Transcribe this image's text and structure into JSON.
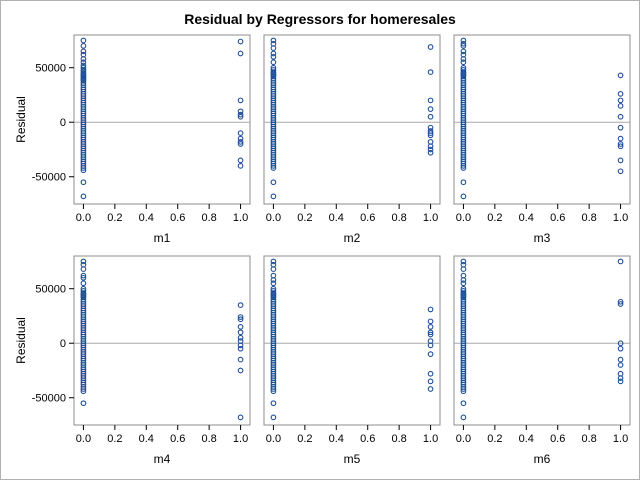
{
  "chart_data": {
    "type": "scatter",
    "title": "Residual by Regressors for homeresales",
    "ylabel": "Residual",
    "ylim": [
      -75000,
      80000
    ],
    "xlim": [
      -0.06,
      1.06
    ],
    "y_ticks": [
      {
        "value": 50000,
        "label": "50000"
      },
      {
        "value": 0,
        "label": "0"
      },
      {
        "value": -50000,
        "label": "-50000"
      }
    ],
    "x_ticks": [
      {
        "value": 0.0,
        "label": "0.0"
      },
      {
        "value": 0.2,
        "label": "0.2"
      },
      {
        "value": 0.4,
        "label": "0.4"
      },
      {
        "value": 0.6,
        "label": "0.6"
      },
      {
        "value": 0.8,
        "label": "0.8"
      },
      {
        "value": 1.0,
        "label": "1.0"
      }
    ],
    "reference_line_y": 0,
    "colors": {
      "marker": "#1f4f9a",
      "reference": "#a8a8a8",
      "frame": "#8c8c8c"
    },
    "panels": [
      {
        "xlabel": "m1",
        "points_x0": [
          75000,
          70000,
          65000,
          62000,
          58000,
          55000,
          52000,
          50000,
          48000,
          47000,
          45000,
          44000,
          43000,
          42000,
          41000,
          40000,
          39000,
          38000,
          36000,
          34000,
          32000,
          30000,
          28000,
          26000,
          24000,
          22000,
          20000,
          18000,
          16000,
          14000,
          12000,
          10000,
          8000,
          6000,
          4000,
          2000,
          0,
          -2000,
          -4000,
          -6000,
          -8000,
          -10000,
          -12000,
          -14000,
          -16000,
          -18000,
          -20000,
          -22000,
          -24000,
          -26000,
          -28000,
          -30000,
          -32000,
          -34000,
          -36000,
          -38000,
          -40000,
          -42000,
          -44000,
          -55000,
          -68000
        ],
        "points_x1": [
          74000,
          63000,
          20000,
          10000,
          7000,
          5000,
          -10000,
          -15000,
          -18000,
          -20000,
          -35000,
          -40000
        ]
      },
      {
        "xlabel": "m2",
        "points_x0": [
          75000,
          72000,
          68000,
          63000,
          60000,
          55000,
          50000,
          48000,
          46000,
          45000,
          44000,
          43000,
          42000,
          40000,
          38000,
          36000,
          34000,
          32000,
          30000,
          28000,
          26000,
          24000,
          22000,
          20000,
          18000,
          16000,
          14000,
          12000,
          10000,
          8000,
          6000,
          4000,
          2000,
          0,
          -2000,
          -4000,
          -6000,
          -8000,
          -10000,
          -12000,
          -14000,
          -16000,
          -18000,
          -20000,
          -22000,
          -24000,
          -26000,
          -28000,
          -30000,
          -32000,
          -34000,
          -36000,
          -38000,
          -40000,
          -42000,
          -55000,
          -68000
        ],
        "points_x1": [
          69000,
          46000,
          20000,
          12000,
          5000,
          -5000,
          -8000,
          -10000,
          -12000,
          -18000,
          -22000,
          -25000,
          -28000
        ]
      },
      {
        "xlabel": "m3",
        "points_x0": [
          75000,
          72000,
          70000,
          65000,
          62000,
          58000,
          55000,
          50000,
          48000,
          46000,
          45000,
          44000,
          43000,
          42000,
          40000,
          38000,
          36000,
          34000,
          32000,
          30000,
          28000,
          26000,
          24000,
          22000,
          20000,
          18000,
          16000,
          14000,
          12000,
          10000,
          8000,
          6000,
          4000,
          2000,
          0,
          -2000,
          -4000,
          -6000,
          -8000,
          -10000,
          -12000,
          -14000,
          -16000,
          -18000,
          -20000,
          -22000,
          -24000,
          -26000,
          -28000,
          -30000,
          -32000,
          -34000,
          -36000,
          -38000,
          -40000,
          -42000,
          -55000,
          -68000
        ],
        "points_x1": [
          43000,
          26000,
          20000,
          15000,
          5000,
          -5000,
          -15000,
          -20000,
          -22000,
          -35000,
          -45000
        ]
      },
      {
        "xlabel": "m4",
        "points_x0": [
          75000,
          72000,
          68000,
          62000,
          60000,
          55000,
          50000,
          48000,
          46000,
          45000,
          44000,
          43000,
          42000,
          40000,
          38000,
          36000,
          34000,
          32000,
          30000,
          28000,
          26000,
          24000,
          22000,
          20000,
          18000,
          16000,
          14000,
          12000,
          10000,
          8000,
          6000,
          4000,
          2000,
          0,
          -2000,
          -4000,
          -6000,
          -8000,
          -10000,
          -12000,
          -14000,
          -16000,
          -18000,
          -20000,
          -22000,
          -24000,
          -26000,
          -28000,
          -30000,
          -32000,
          -34000,
          -36000,
          -38000,
          -40000,
          -42000,
          -44000,
          -55000
        ],
        "points_x1": [
          35000,
          24000,
          22000,
          15000,
          10000,
          5000,
          2000,
          -2000,
          -5000,
          -15000,
          -25000,
          -68000
        ]
      },
      {
        "xlabel": "m5",
        "points_x0": [
          75000,
          72000,
          68000,
          62000,
          58000,
          55000,
          50000,
          48000,
          46000,
          45000,
          44000,
          43000,
          42000,
          40000,
          38000,
          36000,
          34000,
          32000,
          30000,
          28000,
          26000,
          24000,
          22000,
          20000,
          18000,
          16000,
          14000,
          12000,
          10000,
          8000,
          6000,
          4000,
          2000,
          0,
          -2000,
          -4000,
          -6000,
          -8000,
          -10000,
          -12000,
          -14000,
          -16000,
          -18000,
          -20000,
          -22000,
          -24000,
          -26000,
          -28000,
          -30000,
          -32000,
          -34000,
          -36000,
          -38000,
          -40000,
          -42000,
          -44000,
          -55000,
          -68000
        ],
        "points_x1": [
          31000,
          20000,
          15000,
          10000,
          8000,
          2000,
          -2000,
          -10000,
          -28000,
          -35000,
          -42000
        ]
      },
      {
        "xlabel": "m6",
        "points_x0": [
          75000,
          72000,
          68000,
          62000,
          58000,
          55000,
          50000,
          48000,
          46000,
          45000,
          44000,
          43000,
          42000,
          40000,
          38000,
          36000,
          34000,
          32000,
          30000,
          28000,
          26000,
          24000,
          22000,
          20000,
          18000,
          16000,
          14000,
          12000,
          10000,
          8000,
          6000,
          4000,
          2000,
          0,
          -2000,
          -4000,
          -6000,
          -8000,
          -10000,
          -12000,
          -14000,
          -16000,
          -18000,
          -20000,
          -22000,
          -24000,
          -26000,
          -28000,
          -30000,
          -32000,
          -34000,
          -36000,
          -38000,
          -40000,
          -42000,
          -44000,
          -55000,
          -68000
        ],
        "points_x1": [
          75000,
          38000,
          36000,
          0,
          -5000,
          -15000,
          -20000,
          -28000,
          -32000,
          -35000
        ]
      }
    ]
  }
}
